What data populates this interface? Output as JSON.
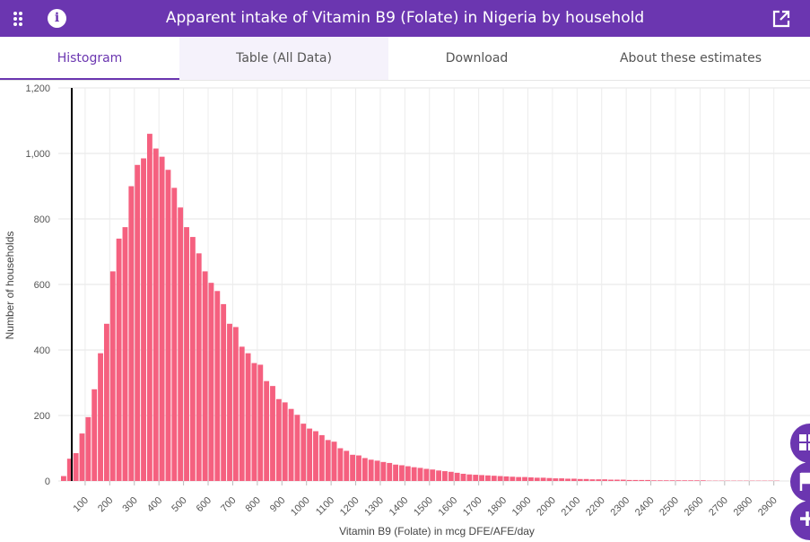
{
  "header": {
    "title": "Apparent intake of Vitamin B9 (Folate) in Nigeria by household",
    "icons": [
      "apps-grid-icon",
      "info-icon",
      "open-external-icon"
    ]
  },
  "tabs": [
    {
      "label": "Histogram",
      "active": true
    },
    {
      "label": "Table (All Data)",
      "active": false
    },
    {
      "label": "Download",
      "active": false
    },
    {
      "label": "About these estimates",
      "active": false
    }
  ],
  "colors": {
    "accent": "#6b36b0",
    "bar": "#f5607f",
    "reference_line": "#000000"
  },
  "fabs": [
    "dashboard-icon",
    "flag-icon",
    "add-icon"
  ],
  "chart_data": {
    "type": "bar",
    "title": "",
    "xlabel": "Vitamin B9 (Folate) in mcg DFE/AFE/day",
    "ylabel": "Number of households",
    "ylim": [
      0,
      1200
    ],
    "yticks": [
      "0",
      "200",
      "400",
      "600",
      "800",
      "1,000",
      "1,200"
    ],
    "xticks": [
      "100",
      "200",
      "300",
      "400",
      "500",
      "600",
      "700",
      "800",
      "900",
      "1000",
      "1100",
      "1200",
      "1300",
      "1400",
      "1500",
      "1600",
      "1700",
      "1800",
      "1900",
      "2000",
      "2100",
      "2200",
      "2300",
      "2400",
      "2500",
      "2600",
      "2700",
      "2800",
      "2900"
    ],
    "bin_width": 25,
    "bin_start": 0,
    "reference_line_x": 0,
    "grid": true,
    "values": [
      15,
      68,
      85,
      145,
      195,
      280,
      390,
      480,
      640,
      740,
      775,
      900,
      965,
      985,
      1060,
      1015,
      990,
      950,
      895,
      835,
      775,
      745,
      695,
      640,
      605,
      580,
      540,
      480,
      470,
      410,
      390,
      360,
      355,
      305,
      290,
      250,
      240,
      220,
      202,
      175,
      160,
      152,
      140,
      125,
      120,
      100,
      92,
      80,
      78,
      70,
      65,
      62,
      58,
      55,
      50,
      48,
      45,
      42,
      40,
      37,
      35,
      32,
      30,
      28,
      25,
      22,
      20,
      19,
      18,
      17,
      16,
      15,
      14,
      13,
      12,
      12,
      11,
      10,
      10,
      9,
      8,
      8,
      7,
      7,
      6,
      6,
      5,
      5,
      5,
      4,
      4,
      4,
      3,
      3,
      3,
      3,
      2,
      2,
      2,
      2,
      2,
      2,
      2,
      2,
      2,
      1,
      1,
      1,
      1,
      1,
      1,
      1,
      1,
      1,
      1,
      1,
      1
    ]
  }
}
